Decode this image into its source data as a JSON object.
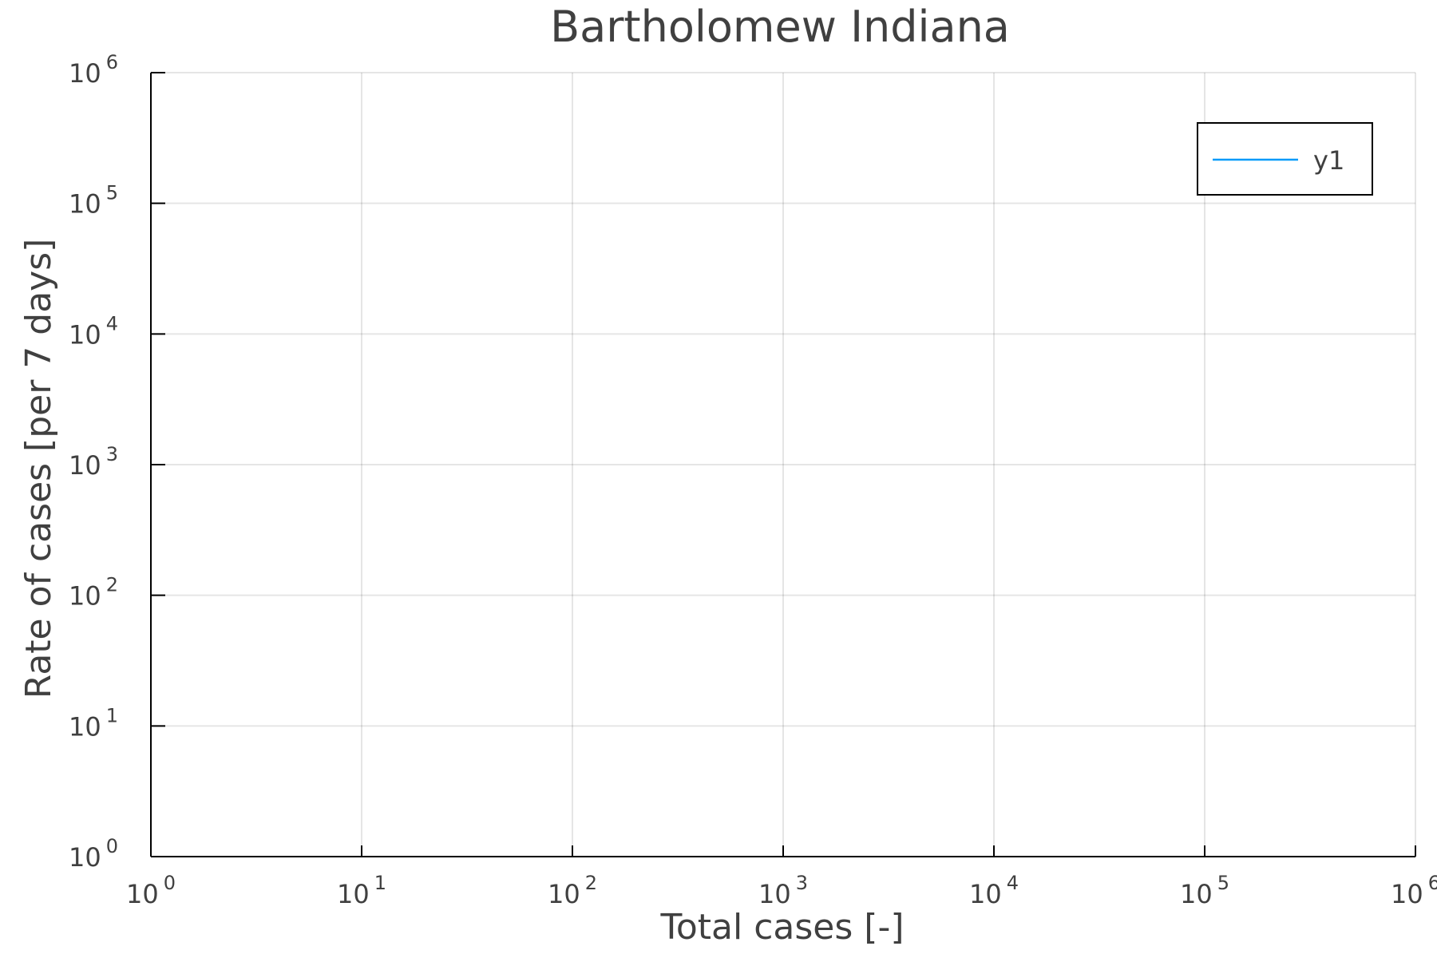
{
  "chart_data": {
    "type": "line",
    "title": "Bartholomew Indiana",
    "xlabel": "Total cases [-]",
    "ylabel": "Rate of cases [per 7 days]",
    "xscale": "log",
    "yscale": "log",
    "xlim": [
      1,
      1000000
    ],
    "ylim": [
      1,
      1000000
    ],
    "x_ticks": [
      {
        "base": "10",
        "exp": "0"
      },
      {
        "base": "10",
        "exp": "1"
      },
      {
        "base": "10",
        "exp": "2"
      },
      {
        "base": "10",
        "exp": "3"
      },
      {
        "base": "10",
        "exp": "4"
      },
      {
        "base": "10",
        "exp": "5"
      },
      {
        "base": "10",
        "exp": "6"
      }
    ],
    "y_ticks": [
      {
        "base": "10",
        "exp": "0"
      },
      {
        "base": "10",
        "exp": "1"
      },
      {
        "base": "10",
        "exp": "2"
      },
      {
        "base": "10",
        "exp": "3"
      },
      {
        "base": "10",
        "exp": "4"
      },
      {
        "base": "10",
        "exp": "5"
      },
      {
        "base": "10",
        "exp": "6"
      }
    ],
    "grid": true,
    "legend_position": "top-right",
    "series": [
      {
        "name": "y1",
        "color": "#009af9",
        "x": [],
        "y": []
      }
    ]
  }
}
